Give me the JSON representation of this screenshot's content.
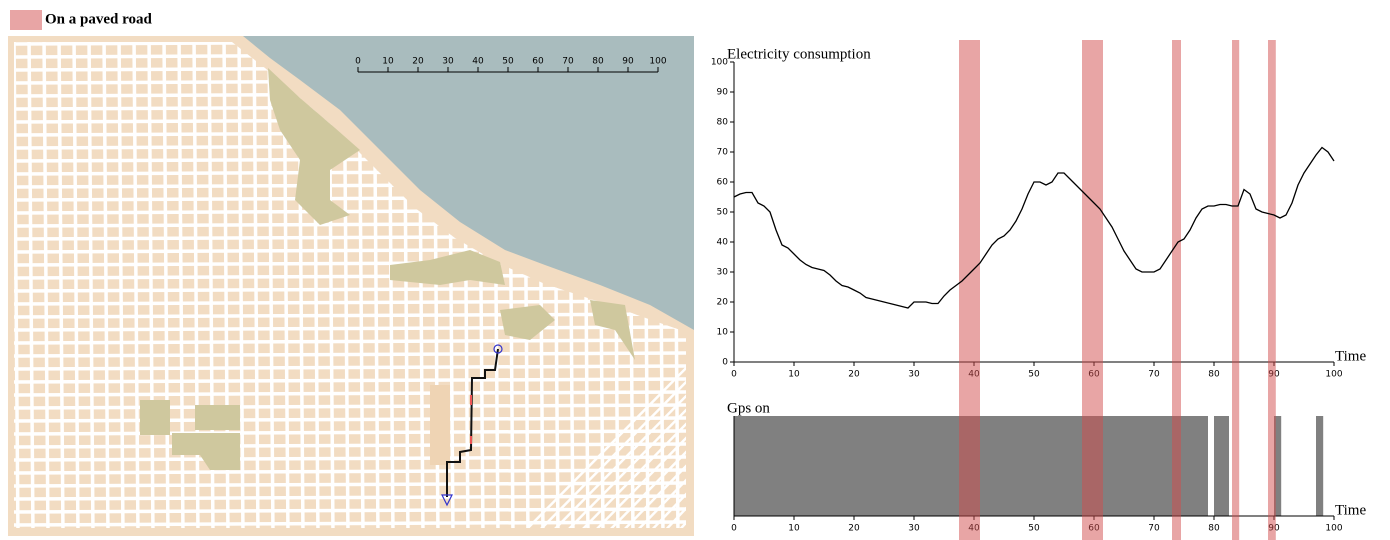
{
  "chart_data": [
    {
      "type": "line",
      "ylabel": "Electricity consumption",
      "xlabel": "Time",
      "color": "#000000",
      "xlim": [
        0,
        100
      ],
      "ylim": [
        0,
        100
      ],
      "xticks": [
        0,
        10,
        20,
        30,
        40,
        50,
        60,
        70,
        80,
        90,
        100
      ],
      "yticks": [
        0,
        10,
        20,
        30,
        40,
        50,
        60,
        70,
        80,
        90,
        100
      ],
      "x": [
        0,
        1,
        2,
        3,
        4,
        5,
        6,
        7,
        8,
        9,
        10,
        11,
        12,
        13,
        14,
        15,
        16,
        17,
        18,
        19,
        20,
        21,
        22,
        23,
        24,
        25,
        26,
        27,
        28,
        29,
        30,
        31,
        32,
        33,
        34,
        35,
        36,
        37,
        38,
        39,
        40,
        41,
        42,
        43,
        44,
        45,
        46,
        47,
        48,
        49,
        50,
        51,
        52,
        53,
        54,
        55,
        56,
        57,
        58,
        59,
        60,
        61,
        62,
        63,
        64,
        65,
        66,
        67,
        68,
        69,
        70,
        71,
        72,
        73,
        74,
        75,
        76,
        77,
        78,
        79,
        80,
        81,
        82,
        83,
        84,
        85,
        86,
        87,
        88,
        89,
        90,
        91,
        92,
        93,
        94,
        95,
        96,
        97,
        98,
        99,
        100
      ],
      "values": [
        55,
        56,
        56.5,
        56.5,
        53,
        52,
        50,
        44,
        39,
        38,
        36,
        34,
        32.5,
        31.5,
        31,
        30.5,
        29,
        27,
        25.5,
        25,
        24,
        23,
        21.5,
        21,
        20.5,
        20,
        19.5,
        19,
        18.5,
        18,
        20,
        20,
        20,
        19.5,
        19.5,
        22,
        24,
        25.5,
        27,
        29,
        31,
        33,
        36,
        39,
        41,
        42,
        44,
        47,
        51,
        56,
        60,
        60,
        59,
        60,
        63,
        63,
        61,
        59,
        57,
        55,
        53,
        51,
        48,
        45,
        41,
        37,
        34,
        31,
        30,
        30,
        30,
        31,
        34,
        37,
        40,
        41,
        44,
        48,
        51,
        52,
        52,
        52.5,
        52.5,
        52,
        52,
        57.5,
        56,
        51,
        50,
        49.5,
        49,
        48,
        49,
        53,
        59,
        63,
        66,
        69,
        71.5,
        70,
        67
      ],
      "bands": {
        "name": "On a paved road",
        "color": "#d24b4b",
        "intervals": [
          [
            37.5,
            41
          ],
          [
            58,
            61.5
          ],
          [
            73,
            74.5
          ],
          [
            83,
            84.2
          ],
          [
            89,
            90.3
          ]
        ]
      }
    },
    {
      "type": "interval",
      "ylabel": "Gps on",
      "xlabel": "Time",
      "color": "#808080",
      "xlim": [
        0,
        100
      ],
      "xticks": [
        0,
        10,
        20,
        30,
        40,
        50,
        60,
        70,
        80,
        90,
        100
      ],
      "intervals": [
        [
          0,
          79
        ],
        [
          80,
          82.5
        ],
        [
          90,
          91.2
        ],
        [
          97,
          98.2
        ]
      ]
    }
  ],
  "map": {
    "scale_ticks": [
      0,
      10,
      20,
      30,
      40,
      50,
      60,
      70,
      80,
      90,
      100
    ]
  }
}
